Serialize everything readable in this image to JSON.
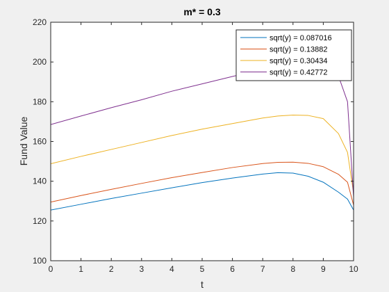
{
  "chart_data": {
    "type": "line",
    "title": "m* = 0.3",
    "xlabel": "t",
    "ylabel": "Fund Value",
    "xlim": [
      0,
      10
    ],
    "ylim": [
      100,
      220
    ],
    "xticks": [
      0,
      1,
      2,
      3,
      4,
      5,
      6,
      7,
      8,
      9,
      10
    ],
    "yticks": [
      100,
      120,
      140,
      160,
      180,
      200,
      220
    ],
    "grid": false,
    "legend_position": "top-right",
    "series": [
      {
        "name": "sqrt(y) = 0.087016",
        "color": "#0072BD",
        "x": [
          0,
          1,
          2,
          3,
          4,
          5,
          6,
          7,
          7.5,
          8,
          8.5,
          9,
          9.5,
          9.8,
          10
        ],
        "y": [
          125.5,
          128.4,
          131.3,
          134.0,
          136.7,
          139.3,
          141.6,
          143.6,
          144.3,
          144.1,
          142.5,
          139.5,
          134.5,
          131.0,
          125.5
        ]
      },
      {
        "name": "sqrt(y) = 0.13882",
        "color": "#D95319",
        "x": [
          0,
          1,
          2,
          3,
          4,
          5,
          6,
          7,
          7.5,
          8,
          8.5,
          9,
          9.5,
          9.8,
          10
        ],
        "y": [
          129.5,
          132.8,
          135.9,
          138.9,
          141.8,
          144.4,
          146.9,
          148.9,
          149.5,
          149.6,
          149.0,
          147.3,
          143.5,
          139.5,
          128.0
        ]
      },
      {
        "name": "sqrt(y) = 0.30434",
        "color": "#EDB120",
        "x": [
          0,
          1,
          2,
          3,
          4,
          5,
          6,
          7,
          7.5,
          8,
          8.5,
          9,
          9.5,
          9.8,
          10
        ],
        "y": [
          148.8,
          152.5,
          156.0,
          159.5,
          163.0,
          166.2,
          169.0,
          171.8,
          172.8,
          173.3,
          173.1,
          171.5,
          164.0,
          154.5,
          134.0
        ]
      },
      {
        "name": "sqrt(y) = 0.42772",
        "color": "#7E2F8E",
        "x": [
          0,
          1,
          2,
          3,
          4,
          5,
          6,
          6.5,
          7,
          8,
          9,
          9.5,
          9.8,
          10
        ],
        "y": [
          168.5,
          172.8,
          177.0,
          181.0,
          185.3,
          189.0,
          192.7,
          194.5,
          196.0,
          199.5,
          200.5,
          193.0,
          180.0,
          132.0
        ]
      }
    ]
  }
}
